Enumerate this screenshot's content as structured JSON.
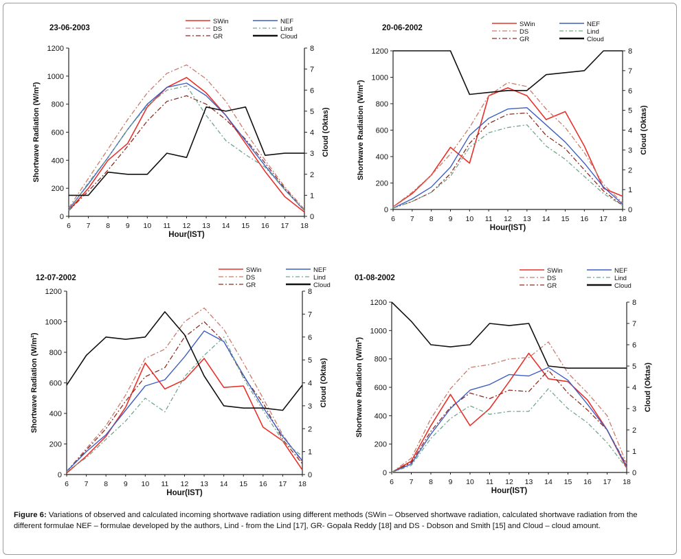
{
  "figure": {
    "caption_label": "Figure 6:",
    "caption_text": "Variations of observed and calculated incoming shortwave radiation using different methods (SWin – Observed shortwave radiation, calculated shortwave radiation from the different formulae NEF – formulae developed by the authors, Lind - from the Lind [17], GR- Gopala Reddy [18] and DS - Dobson and Smith [15] and Cloud – cloud amount."
  },
  "colors": {
    "SWin": "#e8302a",
    "DS": "#c97a6a",
    "GR": "#8e2a1f",
    "NEF": "#3e5fc2",
    "Lind": "#6fa68c",
    "Cloud": "#111111"
  },
  "chart_data": [
    {
      "type": "line",
      "title": "23-06-2003",
      "xlabel": "Hour(IST)",
      "ylabel": "Shortwave Radiation (W/m²)",
      "y2label": "Cloud (Oktas)",
      "x": [
        6,
        7,
        8,
        9,
        10,
        11,
        12,
        13,
        14,
        15,
        16,
        17,
        18
      ],
      "xlim": [
        6,
        18
      ],
      "ylim": [
        0,
        1200
      ],
      "y2lim": [
        0,
        8
      ],
      "yticks": [
        0,
        200,
        400,
        600,
        800,
        1000,
        1200
      ],
      "y2ticks": [
        0,
        1,
        2,
        3,
        4,
        5,
        6,
        7,
        8
      ],
      "legend": "top",
      "series": [
        {
          "name": "SWin",
          "axis": "left",
          "values": [
            40,
            200,
            400,
            520,
            780,
            920,
            990,
            880,
            720,
            520,
            320,
            140,
            30
          ]
        },
        {
          "name": "DS",
          "axis": "left",
          "values": [
            60,
            270,
            480,
            690,
            880,
            1020,
            1080,
            980,
            820,
            600,
            400,
            210,
            50
          ]
        },
        {
          "name": "GR",
          "axis": "left",
          "values": [
            40,
            180,
            330,
            500,
            680,
            820,
            860,
            800,
            690,
            550,
            380,
            200,
            40
          ]
        },
        {
          "name": "NEF",
          "axis": "left",
          "values": [
            50,
            230,
            420,
            620,
            800,
            920,
            950,
            860,
            720,
            540,
            360,
            190,
            40
          ]
        },
        {
          "name": "Lind",
          "axis": "left",
          "values": [
            40,
            240,
            420,
            620,
            790,
            900,
            930,
            720,
            540,
            440,
            350,
            190,
            40
          ]
        },
        {
          "name": "Cloud",
          "axis": "right",
          "values": [
            1,
            1,
            2.1,
            2,
            2,
            3,
            2.8,
            5.2,
            5,
            5.2,
            2.9,
            3,
            3
          ]
        }
      ]
    },
    {
      "type": "line",
      "title": "20-06-2002",
      "xlabel": "Hour(IST)",
      "ylabel": "Shortwave Radiation (W/m²)",
      "y2label": "Cloud (Oktas)",
      "x": [
        6,
        7,
        8,
        9,
        10,
        11,
        12,
        13,
        14,
        15,
        16,
        17,
        18
      ],
      "xlim": [
        6,
        18
      ],
      "ylim": [
        0,
        1200
      ],
      "y2lim": [
        0,
        8
      ],
      "yticks": [
        0,
        200,
        400,
        600,
        800,
        1000,
        1200
      ],
      "y2ticks": [
        0,
        1,
        2,
        3,
        4,
        5,
        6,
        7,
        8
      ],
      "legend": "top",
      "series": [
        {
          "name": "SWin",
          "axis": "left",
          "values": [
            20,
            120,
            260,
            470,
            350,
            860,
            920,
            860,
            680,
            740,
            480,
            160,
            100
          ]
        },
        {
          "name": "DS",
          "axis": "left",
          "values": [
            20,
            130,
            260,
            420,
            620,
            860,
            960,
            930,
            760,
            620,
            430,
            190,
            50
          ]
        },
        {
          "name": "GR",
          "axis": "left",
          "values": [
            10,
            60,
            130,
            270,
            500,
            650,
            720,
            730,
            560,
            460,
            300,
            140,
            30
          ]
        },
        {
          "name": "NEF",
          "axis": "left",
          "values": [
            10,
            80,
            170,
            320,
            560,
            690,
            760,
            770,
            640,
            510,
            350,
            170,
            40
          ]
        },
        {
          "name": "Lind",
          "axis": "left",
          "values": [
            10,
            60,
            130,
            250,
            470,
            580,
            620,
            640,
            480,
            380,
            250,
            120,
            30
          ]
        },
        {
          "name": "Cloud",
          "axis": "right",
          "values": [
            8,
            8,
            8,
            8,
            5.8,
            5.9,
            6,
            6,
            6.8,
            6.9,
            7,
            8,
            8
          ]
        }
      ]
    },
    {
      "type": "line",
      "title": "12-07-2002",
      "xlabel": "Hour(IST)",
      "ylabel": "Shortwave Radiation (W/m²)",
      "y2label": "Cloud (Oktas)",
      "x": [
        6,
        7,
        8,
        9,
        10,
        11,
        12,
        13,
        14,
        15,
        16,
        17,
        18
      ],
      "xlim": [
        6,
        18
      ],
      "ylim": [
        0,
        1200
      ],
      "y2lim": [
        0,
        8
      ],
      "yticks": [
        0,
        200,
        400,
        600,
        800,
        1000,
        1200
      ],
      "y2ticks": [
        0,
        1,
        2,
        3,
        4,
        5,
        6,
        7,
        8
      ],
      "legend": "top",
      "series": [
        {
          "name": "SWin",
          "axis": "left",
          "values": [
            10,
            120,
            250,
            440,
            730,
            560,
            620,
            760,
            570,
            580,
            310,
            220,
            30
          ]
        },
        {
          "name": "DS",
          "axis": "left",
          "values": [
            20,
            170,
            320,
            520,
            760,
            820,
            1000,
            1090,
            950,
            730,
            500,
            260,
            80
          ]
        },
        {
          "name": "GR",
          "axis": "left",
          "values": [
            20,
            160,
            300,
            480,
            640,
            700,
            900,
            1000,
            870,
            640,
            470,
            230,
            70
          ]
        },
        {
          "name": "NEF",
          "axis": "left",
          "values": [
            20,
            150,
            260,
            420,
            580,
            620,
            770,
            940,
            870,
            650,
            440,
            250,
            90
          ]
        },
        {
          "name": "Lind",
          "axis": "left",
          "values": [
            20,
            110,
            230,
            350,
            500,
            410,
            640,
            780,
            900,
            630,
            420,
            220,
            120
          ]
        },
        {
          "name": "Cloud",
          "axis": "right",
          "values": [
            3.9,
            5.2,
            6,
            5.9,
            6,
            7.1,
            6.1,
            4.3,
            3,
            2.9,
            2.9,
            2.8,
            3.9
          ]
        }
      ]
    },
    {
      "type": "line",
      "title": "01-08-2002",
      "xlabel": "Hour(IST)",
      "ylabel": "Shortwave Radiation (W/m²)",
      "y2label": "Cloud (Oktas)",
      "x": [
        6,
        7,
        8,
        9,
        10,
        11,
        12,
        13,
        14,
        15,
        16,
        17,
        18
      ],
      "xlim": [
        6,
        18
      ],
      "ylim": [
        0,
        1200
      ],
      "y2lim": [
        0,
        8
      ],
      "yticks": [
        0,
        200,
        400,
        600,
        800,
        1000,
        1200
      ],
      "y2ticks": [
        0,
        1,
        2,
        3,
        4,
        5,
        6,
        7,
        8
      ],
      "legend": "top",
      "series": [
        {
          "name": "SWin",
          "axis": "left",
          "values": [
            0,
            80,
            330,
            550,
            330,
            450,
            640,
            840,
            660,
            640,
            510,
            300,
            30
          ]
        },
        {
          "name": "DS",
          "axis": "left",
          "values": [
            0,
            100,
            380,
            590,
            740,
            760,
            800,
            810,
            920,
            700,
            560,
            400,
            60
          ]
        },
        {
          "name": "GR",
          "axis": "left",
          "values": [
            0,
            70,
            290,
            460,
            560,
            520,
            580,
            570,
            720,
            560,
            440,
            300,
            50
          ]
        },
        {
          "name": "NEF",
          "axis": "left",
          "values": [
            0,
            60,
            270,
            450,
            580,
            620,
            690,
            680,
            740,
            650,
            480,
            300,
            40
          ]
        },
        {
          "name": "Lind",
          "axis": "left",
          "values": [
            0,
            50,
            240,
            380,
            470,
            410,
            430,
            430,
            590,
            450,
            350,
            210,
            30
          ]
        },
        {
          "name": "Cloud",
          "axis": "right",
          "values": [
            8,
            7.1,
            6,
            5.9,
            6,
            7,
            6.9,
            7,
            5,
            4.9,
            4.9,
            4.9,
            4.9
          ]
        }
      ]
    }
  ]
}
